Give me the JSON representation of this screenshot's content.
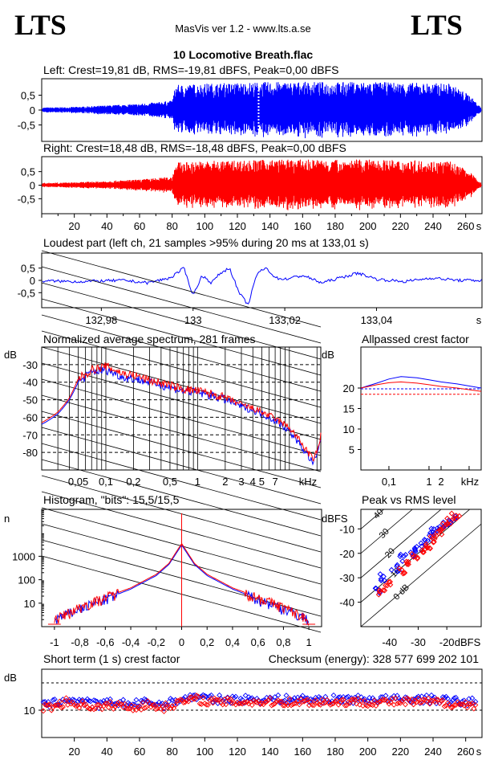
{
  "header": {
    "logo_left": "LTS",
    "logo_right": "LTS",
    "app_title": "MasVis ver 1.2 - www.lts.a.se",
    "track_title": "10 Locomotive Breath.flac"
  },
  "colors": {
    "left": "#0000ff",
    "right": "#ff0000",
    "grid": "#000000"
  },
  "chart_data": [
    {
      "id": "left-waveform",
      "type": "line",
      "title": "Left: Crest=19,81 dB, RMS=-19,81 dBFS, Peak=0,00 dBFS",
      "y_ticks": [
        "0,5",
        "0",
        "-0,5"
      ],
      "ylim": [
        -1,
        1
      ],
      "xlim": [
        0,
        270
      ],
      "loudest_marker_s": 133.01,
      "envelope": {
        "x": [
          0,
          20,
          40,
          60,
          80,
          82,
          100,
          140,
          200,
          250,
          262,
          270
        ],
        "amp": [
          0.08,
          0.1,
          0.15,
          0.2,
          0.3,
          0.8,
          0.85,
          0.9,
          0.9,
          0.85,
          0.5,
          0.05
        ]
      },
      "series": [
        {
          "name": "Left",
          "color": "#0000ff"
        }
      ]
    },
    {
      "id": "right-waveform",
      "type": "line",
      "title": "Right: Crest=18,48 dB, RMS=-18,48 dBFS, Peak=0,00 dBFS",
      "y_ticks": [
        "0,5",
        "0",
        "-0,5"
      ],
      "x_ticks": [
        "20",
        "40",
        "60",
        "80",
        "100",
        "120",
        "140",
        "160",
        "180",
        "200",
        "220",
        "240",
        "260",
        "s"
      ],
      "ylim": [
        -1,
        1
      ],
      "xlim": [
        0,
        270
      ],
      "envelope": {
        "x": [
          0,
          20,
          40,
          60,
          80,
          82,
          100,
          140,
          200,
          250,
          262,
          270
        ],
        "amp": [
          0.08,
          0.1,
          0.15,
          0.2,
          0.3,
          0.8,
          0.85,
          0.9,
          0.9,
          0.85,
          0.5,
          0.05
        ]
      },
      "series": [
        {
          "name": "Right",
          "color": "#ff0000"
        }
      ]
    },
    {
      "id": "loudest-part",
      "type": "line",
      "title": "Loudest part (left  ch, 21 samples >95% during 20 ms at 133,01 s)",
      "y_ticks": [
        "0,5",
        "0",
        "-0,5"
      ],
      "x_ticks": [
        "132,98",
        "133",
        "133,02",
        "133,04",
        "s"
      ],
      "xlim": [
        132.967,
        133.063
      ],
      "ylim": [
        -1,
        1
      ],
      "series": [
        {
          "name": "Left",
          "color": "#0000ff",
          "x": [
            132.967,
            132.975,
            132.985,
            132.99,
            132.995,
            132.998,
            133.0,
            133.002,
            133.004,
            133.006,
            133.008,
            133.01,
            133.012,
            133.014,
            133.016,
            133.018,
            133.02,
            133.024,
            133.028,
            133.032,
            133.036,
            133.04,
            133.046,
            133.052,
            133.058,
            133.063
          ],
          "y": [
            -0.02,
            -0.05,
            0.0,
            -0.1,
            0.1,
            0.5,
            -0.6,
            0.2,
            -0.1,
            0.3,
            0.5,
            -0.5,
            -1.0,
            0.3,
            0.5,
            0.1,
            0.05,
            0.2,
            -0.1,
            0.1,
            0.3,
            0.05,
            -0.05,
            0.1,
            0.0,
            0.0
          ]
        }
      ]
    },
    {
      "id": "avg-spectrum",
      "type": "line",
      "title": "Normalized average spectrum, 281 frames",
      "ylabel": "dB",
      "y_ticks": [
        "-30",
        "-40",
        "-50",
        "-60",
        "-70",
        "-80"
      ],
      "x_ticks": [
        "0,05",
        "0,1",
        "0,2",
        "0,5",
        "1",
        "2",
        "3",
        "4",
        "5",
        "7",
        "kHz"
      ],
      "x_log": true,
      "xlim": [
        0.02,
        22
      ],
      "ylim": [
        -90,
        -20
      ],
      "series": [
        {
          "name": "Left",
          "color": "#0000ff",
          "x": [
            0.02,
            0.03,
            0.04,
            0.05,
            0.07,
            0.1,
            0.15,
            0.2,
            0.3,
            0.5,
            0.7,
            1,
            2,
            3,
            4,
            5,
            7,
            10,
            14,
            18,
            20,
            22
          ],
          "y": [
            -64,
            -58,
            -50,
            -40,
            -34,
            -33,
            -37,
            -38,
            -40,
            -43,
            -45,
            -46,
            -50,
            -54,
            -56,
            -58,
            -62,
            -68,
            -78,
            -86,
            -82,
            -72
          ]
        },
        {
          "name": "Right",
          "color": "#ff0000",
          "x": [
            0.02,
            0.03,
            0.04,
            0.05,
            0.07,
            0.1,
            0.15,
            0.2,
            0.3,
            0.5,
            0.7,
            1,
            2,
            3,
            4,
            5,
            7,
            10,
            14,
            18,
            20,
            22
          ],
          "y": [
            -63,
            -57,
            -49,
            -38,
            -33,
            -31,
            -35,
            -36,
            -39,
            -42,
            -44,
            -45,
            -49,
            -53,
            -55,
            -57,
            -61,
            -66,
            -76,
            -84,
            -80,
            -70
          ]
        }
      ]
    },
    {
      "id": "allpassed-crest",
      "type": "line",
      "title": "Allpassed crest factor",
      "ylabel": "dB",
      "y_ticks": [
        "20",
        "15",
        "10",
        "5"
      ],
      "x_ticks": [
        "0,1",
        "1",
        "2",
        "kHz"
      ],
      "x_log": true,
      "xlim": [
        0.02,
        20
      ],
      "ylim": [
        0,
        30
      ],
      "series": [
        {
          "name": "Left",
          "color": "#0000ff",
          "x": [
            0.02,
            0.05,
            0.1,
            0.2,
            0.5,
            1,
            2,
            5,
            20
          ],
          "y": [
            20,
            21.2,
            22.2,
            22.8,
            22.5,
            22.0,
            21.5,
            21.0,
            20.0
          ]
        },
        {
          "name": "Right",
          "color": "#ff0000",
          "x": [
            0.02,
            0.05,
            0.1,
            0.2,
            0.5,
            1,
            2,
            5,
            20
          ],
          "y": [
            20,
            20.8,
            21.3,
            21.5,
            21.2,
            20.8,
            20.4,
            20.0,
            19.2
          ]
        }
      ],
      "reference_levels": {
        "left": 19.81,
        "right": 18.48
      }
    },
    {
      "id": "histogram",
      "type": "line",
      "title": "Histogram, \"bits\": 15,5/15,5",
      "ylabel": "n",
      "y_ticks": [
        "1000",
        "100",
        "10"
      ],
      "x_ticks": [
        "-1",
        "-0,8",
        "-0,6",
        "-0,4",
        "-0,2",
        "0",
        "0,2",
        "0,4",
        "0,6",
        "0,8",
        "1"
      ],
      "y_log": true,
      "xlim": [
        -1.1,
        1.1
      ],
      "ylim": [
        1,
        100000
      ],
      "series": [
        {
          "name": "Left",
          "color": "#0000ff",
          "x": [
            -1,
            -0.8,
            -0.6,
            -0.4,
            -0.2,
            -0.1,
            0,
            0.1,
            0.2,
            0.4,
            0.6,
            0.8,
            1
          ],
          "y": [
            2,
            6,
            15,
            40,
            150,
            450,
            3000,
            450,
            150,
            40,
            15,
            6,
            2
          ]
        },
        {
          "name": "Right",
          "color": "#ff0000",
          "x": [
            -1,
            -0.8,
            -0.6,
            -0.4,
            -0.2,
            -0.1,
            0,
            0.1,
            0.2,
            0.4,
            0.6,
            0.8,
            1
          ],
          "y": [
            2,
            7,
            18,
            45,
            170,
            500,
            3500,
            500,
            170,
            45,
            18,
            7,
            2
          ]
        }
      ]
    },
    {
      "id": "peak-vs-rms",
      "type": "scatter",
      "title": "Peak vs RMS level",
      "ylabel": "dBFS",
      "xlabel": "dBFS",
      "y_ticks": [
        "-10",
        "-20",
        "-30",
        "-40"
      ],
      "x_ticks": [
        "-40",
        "-30",
        "-20"
      ],
      "xlim": [
        -50,
        -8
      ],
      "ylim": [
        -50,
        -2
      ],
      "crest_lines_db": [
        "40",
        "30",
        "20",
        "10",
        "0 dB"
      ],
      "series": [
        {
          "name": "Left",
          "color": "#0000ff",
          "points": [
            [
              -44,
              -35
            ],
            [
              -42,
              -30
            ],
            [
              -38,
              -26
            ],
            [
              -35,
              -22
            ],
            [
              -32,
              -20
            ],
            [
              -30,
              -18
            ],
            [
              -28,
              -15
            ],
            [
              -26,
              -13
            ],
            [
              -24,
              -11
            ],
            [
              -22,
              -10
            ],
            [
              -20,
              -8
            ],
            [
              -18,
              -6
            ]
          ]
        },
        {
          "name": "Right",
          "color": "#ff0000",
          "points": [
            [
              -43,
              -36
            ],
            [
              -40,
              -32
            ],
            [
              -36,
              -27
            ],
            [
              -33,
              -24
            ],
            [
              -31,
              -21
            ],
            [
              -29,
              -19
            ],
            [
              -27,
              -17
            ],
            [
              -25,
              -14
            ],
            [
              -23,
              -12
            ],
            [
              -21,
              -9
            ],
            [
              -19,
              -7
            ],
            [
              -17,
              -5
            ]
          ]
        }
      ]
    },
    {
      "id": "short-term-crest",
      "type": "scatter",
      "title": "Short term (1 s) crest factor",
      "checksum": "Checksum (energy):   328 577 699 202 101",
      "ylabel": "dB",
      "y_ticks": [
        "10"
      ],
      "x_ticks": [
        "20",
        "40",
        "60",
        "80",
        "100",
        "120",
        "140",
        "160",
        "180",
        "200",
        "220",
        "240",
        "260",
        "s"
      ],
      "xlim": [
        0,
        270
      ],
      "ylim": [
        0,
        25
      ],
      "series": [
        {
          "name": "Left",
          "color": "#0000ff",
          "x": [
            5,
            15,
            25,
            35,
            45,
            55,
            65,
            75,
            85,
            95,
            105,
            120,
            140,
            160,
            180,
            200,
            220,
            240,
            260
          ],
          "y": [
            12,
            14,
            13,
            12,
            13,
            12,
            13,
            12,
            14,
            15,
            14,
            14,
            14,
            14,
            14,
            14,
            14,
            14,
            13
          ]
        },
        {
          "name": "Right",
          "color": "#ff0000",
          "x": [
            5,
            15,
            25,
            35,
            45,
            55,
            65,
            75,
            85,
            95,
            105,
            120,
            140,
            160,
            180,
            200,
            220,
            240,
            260
          ],
          "y": [
            11,
            13,
            12,
            11,
            12,
            11,
            12,
            11,
            13,
            14,
            13,
            13,
            13,
            13,
            13,
            13,
            13,
            13,
            12
          ]
        }
      ]
    }
  ]
}
